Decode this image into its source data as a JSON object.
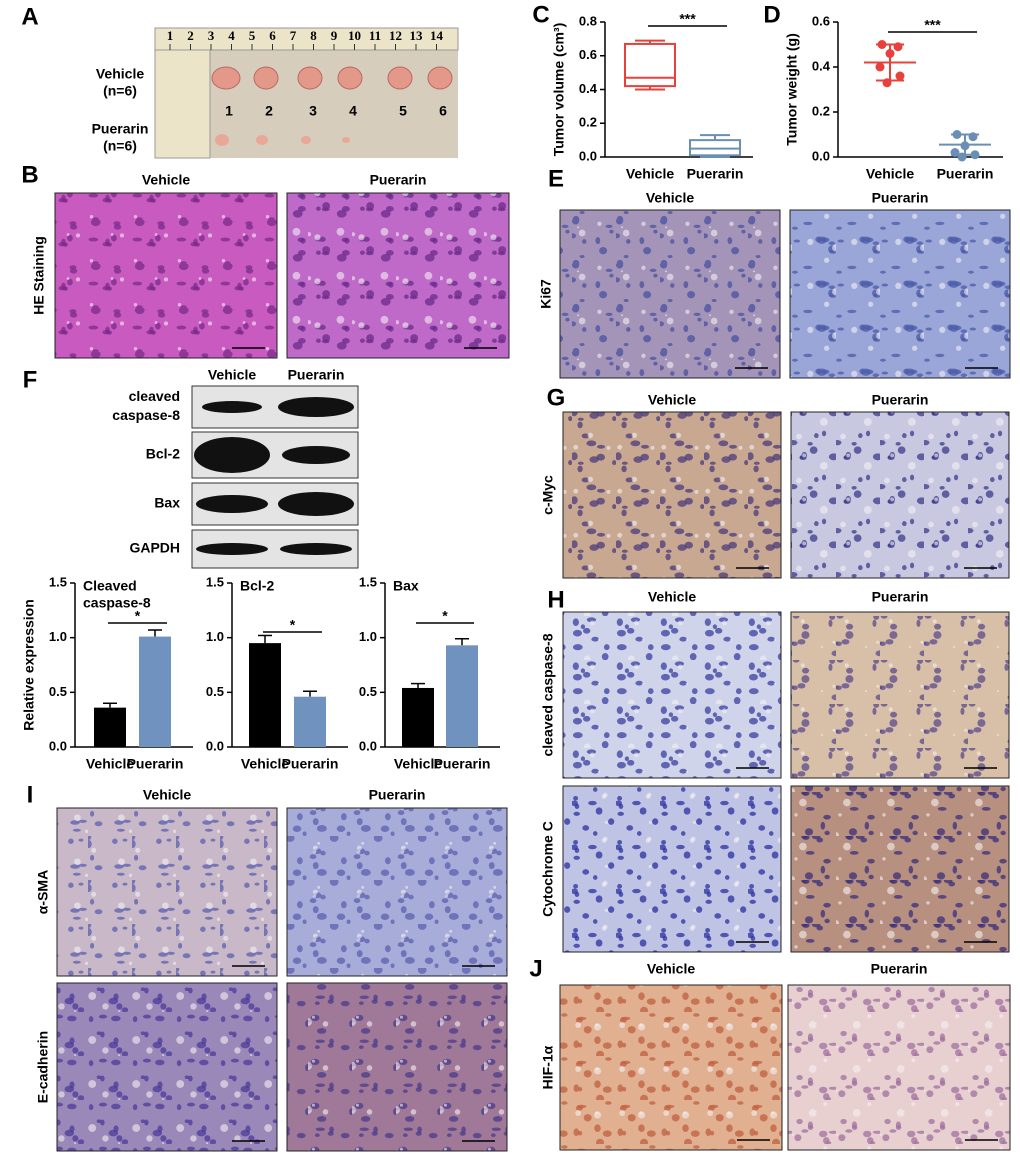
{
  "figure": {
    "letters": [
      "A",
      "B",
      "C",
      "D",
      "E",
      "F",
      "G",
      "H",
      "I",
      "J"
    ],
    "photo": {
      "groups": [
        {
          "name": "Vehicle",
          "n": "(n=6)"
        },
        {
          "name": "Puerarin",
          "n": "(n=6)"
        }
      ],
      "numbers": [
        1,
        2,
        3,
        4,
        5,
        6
      ],
      "ruler": [
        1,
        2,
        3,
        4,
        5,
        6,
        7,
        8,
        9,
        10,
        11,
        12,
        13,
        14
      ]
    },
    "stains": [
      {
        "columns": [
          "Vehicle",
          "Puerarin"
        ],
        "rows": [
          "HE Staining"
        ]
      },
      {
        "columns": [
          "Vehicle",
          "Puerarin"
        ],
        "rows": [
          "Ki67"
        ]
      },
      {
        "columns": [
          "Vehicle",
          "Puerarin"
        ],
        "rows": [
          "c-Myc"
        ]
      },
      {
        "columns": [
          "Vehicle",
          "Puerarin"
        ],
        "rows": [
          "cleaved caspase-8",
          "Cytochrome C"
        ]
      },
      {
        "columns": [
          "Vehicle",
          "Puerarin"
        ],
        "rows": [
          "α-SMA",
          "E-cadherin"
        ]
      },
      {
        "columns": [
          "Vehicle",
          "Puerarin"
        ],
        "rows": [
          "HIF-1α"
        ]
      }
    ],
    "western": {
      "columns": [
        "Vehicle",
        "Puerarin"
      ],
      "rows": [
        [
          "cleaved",
          "caspase-8"
        ],
        [
          "Bcl-2"
        ],
        [
          "Bax"
        ],
        [
          "GAPDH"
        ]
      ]
    }
  },
  "chart_data": [
    {
      "type": "box",
      "ylabel": "Tumor volume (cm³)",
      "categories": [
        "Vehicle",
        "Puerarin"
      ],
      "boxes": [
        {
          "min": 0.4,
          "q1": 0.42,
          "median": 0.47,
          "q3": 0.67,
          "max": 0.69
        },
        {
          "min": 0.0,
          "q1": 0.01,
          "median": 0.05,
          "q3": 0.1,
          "max": 0.13
        }
      ],
      "colors": [
        "#e8403a",
        "#6a8fb5"
      ],
      "annotation": "***",
      "ylim": [
        0,
        0.8
      ],
      "yticks": [
        {
          "value": 0,
          "label": "0.0"
        },
        0.2,
        0.4,
        0.6,
        0.8
      ]
    },
    {
      "type": "strip",
      "ylabel": "Tumor weight (g)",
      "categories": [
        "Vehicle",
        "Puerarin"
      ],
      "points": [
        [
          0.5,
          0.49,
          0.46,
          0.4,
          0.36,
          0.33
        ],
        [
          0.1,
          0.09,
          0.05,
          0.02,
          0.01,
          0.0
        ]
      ],
      "means": [
        0.42,
        0.055
      ],
      "errors": [
        0.08,
        0.045
      ],
      "colors": [
        "#e8403a",
        "#6a8fb5"
      ],
      "annotation": "***",
      "ylim": [
        0,
        0.6
      ],
      "yticks": [
        {
          "value": 0,
          "label": "0.0"
        },
        0.2,
        0.4,
        0.6
      ]
    },
    {
      "type": "bar",
      "title": [
        "Cleaved",
        "caspase-8"
      ],
      "ylabel": "Relative expression",
      "categories": [
        "Vehicle",
        "Puerarin"
      ],
      "values": [
        0.36,
        1.01
      ],
      "errors": [
        0.04,
        0.06
      ],
      "colors": [
        "#000000",
        "#7092be"
      ],
      "annotation": "*",
      "ylim": [
        0,
        1.5
      ],
      "yticks": [
        {
          "value": 0,
          "label": "0.0"
        },
        0.5,
        {
          "value": 1,
          "label": "1.0"
        },
        1.5
      ]
    },
    {
      "type": "bar",
      "title": [
        "Bcl-2"
      ],
      "categories": [
        "Vehicle",
        "Puerarin"
      ],
      "values": [
        0.95,
        0.46
      ],
      "errors": [
        0.07,
        0.05
      ],
      "colors": [
        "#000000",
        "#7092be"
      ],
      "annotation": "*",
      "ylim": [
        0,
        1.5
      ],
      "yticks": [
        {
          "value": 0,
          "label": "0.0"
        },
        0.5,
        {
          "value": 1,
          "label": "1.0"
        },
        1.5
      ]
    },
    {
      "type": "bar",
      "title": [
        "Bax"
      ],
      "categories": [
        "Vehicle",
        "Puerarin"
      ],
      "values": [
        0.54,
        0.93
      ],
      "errors": [
        0.04,
        0.06
      ],
      "colors": [
        "#000000",
        "#7092be"
      ],
      "annotation": "*",
      "ylim": [
        0,
        1.5
      ],
      "yticks": [
        {
          "value": 0,
          "label": "0.0"
        },
        0.5,
        {
          "value": 1,
          "label": "1.0"
        },
        1.5
      ]
    }
  ]
}
